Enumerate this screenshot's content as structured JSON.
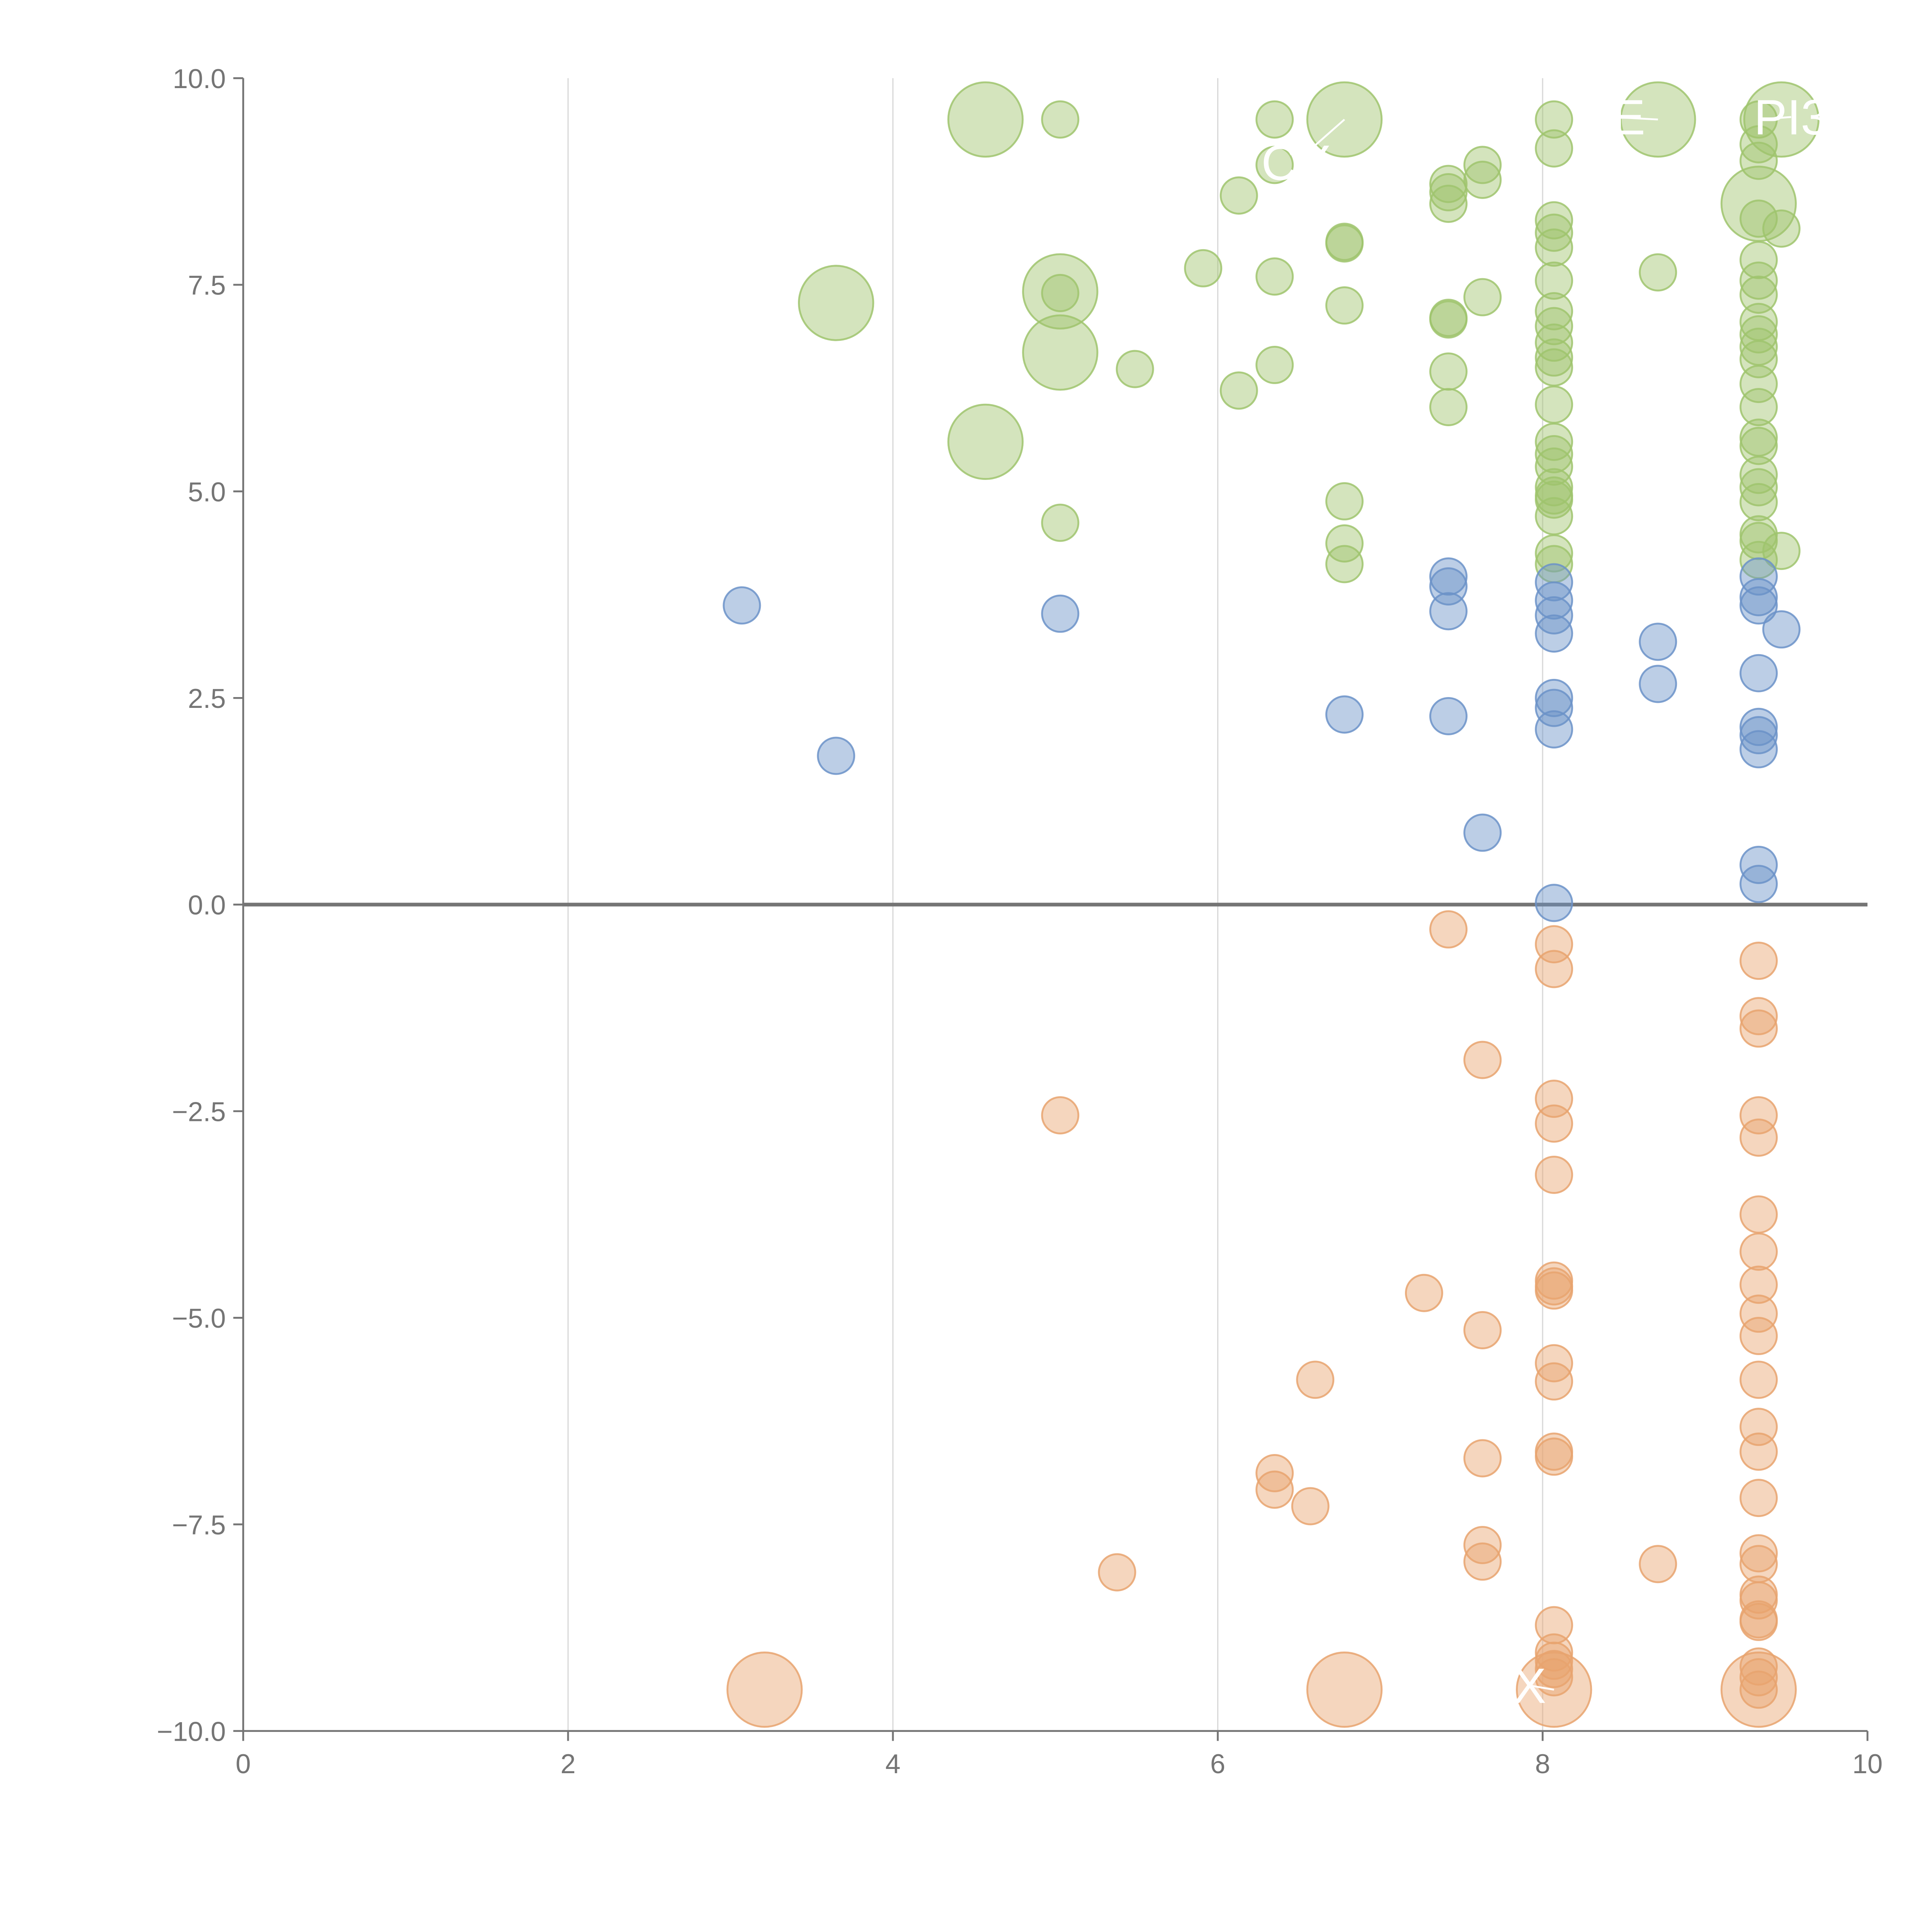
{
  "chart_data": {
    "type": "scatter",
    "title": "",
    "xlabel": "",
    "ylabel": "",
    "xlim": [
      0,
      10
    ],
    "ylim": [
      -10,
      10
    ],
    "x_ticks": [
      "0",
      "2",
      "4",
      "6",
      "8",
      "10"
    ],
    "y_ticks": [
      "10.0",
      "7.5",
      "5.0",
      "2.5",
      "0.0",
      "−2.5",
      "−5.0",
      "−7.5",
      "−10.0"
    ],
    "x_tick_values": [
      0,
      2,
      4,
      6,
      8,
      10
    ],
    "y_tick_values": [
      10,
      7.5,
      5,
      2.5,
      0,
      -2.5,
      -5,
      -7.5,
      -10
    ],
    "grid": "vertical",
    "colors": {
      "high": "#9fc46d",
      "mid": "#6b92c8",
      "low": "#e8a36e",
      "axis": "#757575",
      "zero_line": "#757575",
      "grid": "#d9d9d9",
      "annotation": "#ffffff"
    },
    "series": [
      {
        "color": "high",
        "points": [
          [
            4.57,
            9.5,
            2
          ],
          [
            5.03,
            9.5,
            1
          ],
          [
            6.35,
            9.5,
            1
          ],
          [
            6.78,
            9.5,
            2
          ],
          [
            8.07,
            9.5,
            1
          ],
          [
            8.71,
            9.5,
            2
          ],
          [
            9.33,
            9.5,
            1
          ],
          [
            9.47,
            9.5,
            2
          ],
          [
            6.13,
            8.58,
            1
          ],
          [
            6.35,
            8.95,
            1
          ],
          [
            7.42,
            8.72,
            1
          ],
          [
            7.42,
            8.62,
            1
          ],
          [
            7.42,
            8.48,
            1
          ],
          [
            7.63,
            8.95,
            1
          ],
          [
            7.63,
            8.77,
            1
          ],
          [
            8.07,
            9.15,
            1
          ],
          [
            9.33,
            9.2,
            1
          ],
          [
            9.33,
            9.0,
            1
          ],
          [
            9.33,
            8.48,
            2
          ],
          [
            9.33,
            8.3,
            1
          ],
          [
            9.47,
            8.18,
            1
          ],
          [
            8.07,
            8.28,
            1
          ],
          [
            8.07,
            8.13,
            1
          ],
          [
            8.07,
            7.95,
            1
          ],
          [
            8.07,
            7.55,
            1
          ],
          [
            8.07,
            7.18,
            1
          ],
          [
            8.07,
            7.0,
            1
          ],
          [
            8.07,
            6.8,
            1
          ],
          [
            8.07,
            6.62,
            1
          ],
          [
            8.07,
            6.5,
            1
          ],
          [
            8.07,
            6.05,
            1
          ],
          [
            8.07,
            5.6,
            1
          ],
          [
            8.07,
            5.45,
            1
          ],
          [
            8.07,
            5.3,
            1
          ],
          [
            8.07,
            5.05,
            1
          ],
          [
            8.07,
            4.95,
            1
          ],
          [
            8.07,
            4.9,
            1
          ],
          [
            8.07,
            4.7,
            1
          ],
          [
            8.07,
            4.25,
            1
          ],
          [
            8.07,
            4.12,
            1
          ],
          [
            9.33,
            7.8,
            1
          ],
          [
            9.33,
            7.55,
            1
          ],
          [
            9.33,
            7.38,
            1
          ],
          [
            9.33,
            7.05,
            1
          ],
          [
            9.33,
            6.9,
            1
          ],
          [
            9.33,
            6.75,
            1
          ],
          [
            9.33,
            6.6,
            1
          ],
          [
            9.33,
            6.3,
            1
          ],
          [
            9.33,
            6.02,
            1
          ],
          [
            9.33,
            5.65,
            1
          ],
          [
            9.33,
            5.55,
            1
          ],
          [
            9.33,
            5.2,
            1
          ],
          [
            9.33,
            5.05,
            1
          ],
          [
            9.33,
            4.87,
            1
          ],
          [
            9.33,
            4.48,
            1
          ],
          [
            9.33,
            4.4,
            1
          ],
          [
            9.33,
            4.17,
            1
          ],
          [
            9.47,
            4.28,
            1
          ],
          [
            3.65,
            7.28,
            2
          ],
          [
            5.03,
            7.42,
            2
          ],
          [
            5.03,
            7.4,
            1
          ],
          [
            5.03,
            6.68,
            2
          ],
          [
            5.49,
            6.48,
            1
          ],
          [
            5.91,
            7.7,
            1
          ],
          [
            6.35,
            7.6,
            1
          ],
          [
            6.13,
            6.22,
            1
          ],
          [
            6.35,
            6.53,
            1
          ],
          [
            6.78,
            8.02,
            1
          ],
          [
            6.78,
            8.0,
            1
          ],
          [
            6.78,
            7.25,
            1
          ],
          [
            7.42,
            7.1,
            1
          ],
          [
            7.42,
            7.08,
            1
          ],
          [
            7.42,
            6.45,
            1
          ],
          [
            7.42,
            6.02,
            1
          ],
          [
            7.63,
            7.35,
            1
          ],
          [
            8.71,
            7.65,
            1
          ],
          [
            4.57,
            5.6,
            2
          ],
          [
            5.03,
            4.62,
            1
          ],
          [
            6.78,
            4.88,
            1
          ],
          [
            6.78,
            4.37,
            1
          ],
          [
            6.78,
            4.12,
            1
          ]
        ]
      },
      {
        "color": "mid",
        "points": [
          [
            3.07,
            3.62,
            1
          ],
          [
            3.65,
            1.8,
            1
          ],
          [
            5.03,
            3.52,
            1
          ],
          [
            6.78,
            2.3,
            1
          ],
          [
            7.42,
            3.97,
            1
          ],
          [
            7.42,
            3.85,
            1
          ],
          [
            7.42,
            3.55,
            1
          ],
          [
            7.42,
            2.28,
            1
          ],
          [
            7.63,
            0.87,
            1
          ],
          [
            8.07,
            3.9,
            1
          ],
          [
            8.07,
            3.68,
            1
          ],
          [
            8.07,
            3.5,
            1
          ],
          [
            8.07,
            3.28,
            1
          ],
          [
            8.07,
            2.5,
            1
          ],
          [
            8.07,
            2.38,
            1
          ],
          [
            8.07,
            2.12,
            1
          ],
          [
            8.07,
            0.02,
            1
          ],
          [
            8.71,
            3.18,
            1
          ],
          [
            8.71,
            2.67,
            1
          ],
          [
            9.33,
            3.97,
            1
          ],
          [
            9.33,
            3.72,
            1
          ],
          [
            9.33,
            3.62,
            1
          ],
          [
            9.33,
            2.8,
            1
          ],
          [
            9.33,
            2.15,
            1
          ],
          [
            9.33,
            2.05,
            1
          ],
          [
            9.33,
            1.88,
            1
          ],
          [
            9.33,
            0.48,
            1
          ],
          [
            9.33,
            0.25,
            1
          ],
          [
            9.47,
            3.33,
            1
          ]
        ]
      },
      {
        "color": "low",
        "points": [
          [
            3.21,
            -9.5,
            2
          ],
          [
            5.03,
            -2.55,
            1
          ],
          [
            5.38,
            -8.08,
            1
          ],
          [
            6.35,
            -6.88,
            1
          ],
          [
            6.35,
            -7.08,
            1
          ],
          [
            6.57,
            -7.28,
            1
          ],
          [
            6.6,
            -5.75,
            1
          ],
          [
            6.78,
            -9.5,
            2
          ],
          [
            7.27,
            -4.7,
            1
          ],
          [
            7.42,
            -0.3,
            1
          ],
          [
            7.63,
            -1.88,
            1
          ],
          [
            7.63,
            -5.15,
            1
          ],
          [
            7.63,
            -6.7,
            1
          ],
          [
            7.63,
            -7.75,
            1
          ],
          [
            7.63,
            -7.95,
            1
          ],
          [
            8.07,
            -0.48,
            1
          ],
          [
            8.07,
            -0.78,
            1
          ],
          [
            8.07,
            -2.35,
            1
          ],
          [
            8.07,
            -2.65,
            1
          ],
          [
            8.07,
            -3.27,
            1
          ],
          [
            8.07,
            -4.55,
            1
          ],
          [
            8.07,
            -4.62,
            1
          ],
          [
            8.07,
            -4.67,
            1
          ],
          [
            8.07,
            -5.55,
            1
          ],
          [
            8.07,
            -5.77,
            1
          ],
          [
            8.07,
            -6.62,
            1
          ],
          [
            8.07,
            -6.68,
            1
          ],
          [
            8.07,
            -8.72,
            1
          ],
          [
            8.07,
            -9.05,
            1
          ],
          [
            8.07,
            -9.15,
            1
          ],
          [
            8.07,
            -9.25,
            1
          ],
          [
            8.07,
            -9.35,
            1
          ],
          [
            8.07,
            -9.5,
            2
          ],
          [
            8.71,
            -7.98,
            1
          ],
          [
            9.33,
            -0.68,
            1
          ],
          [
            9.33,
            -1.35,
            1
          ],
          [
            9.33,
            -1.5,
            1
          ],
          [
            9.33,
            -2.55,
            1
          ],
          [
            9.33,
            -2.82,
            1
          ],
          [
            9.33,
            -3.75,
            1
          ],
          [
            9.33,
            -4.2,
            1
          ],
          [
            9.33,
            -4.6,
            1
          ],
          [
            9.33,
            -4.95,
            1
          ],
          [
            9.33,
            -5.22,
            1
          ],
          [
            9.33,
            -5.75,
            1
          ],
          [
            9.33,
            -6.32,
            1
          ],
          [
            9.33,
            -6.62,
            1
          ],
          [
            9.33,
            -7.18,
            1
          ],
          [
            9.33,
            -7.85,
            1
          ],
          [
            9.33,
            -7.98,
            1
          ],
          [
            9.33,
            -8.35,
            1
          ],
          [
            9.33,
            -8.42,
            1
          ],
          [
            9.33,
            -8.65,
            1
          ],
          [
            9.33,
            -8.68,
            1
          ],
          [
            9.33,
            -9.22,
            1
          ],
          [
            9.33,
            -9.35,
            1
          ],
          [
            9.33,
            -9.5,
            2
          ],
          [
            9.33,
            -9.5,
            1
          ]
        ]
      }
    ],
    "annotations": [
      {
        "text": "DE",
        "x": 8.71,
        "y": 9.5,
        "lx": 8.42,
        "ly": 9.53
      },
      {
        "text": "PI3",
        "x": 9.33,
        "y": 9.5,
        "lx": 9.53,
        "ly": 9.53
      },
      {
        "text": "CY",
        "x": 6.78,
        "y": 9.5,
        "lx": 6.48,
        "ly": 8.98
      },
      {
        "text": "X",
        "x": 8.07,
        "y": -9.5,
        "lx": 7.92,
        "ly": -9.45
      }
    ]
  }
}
